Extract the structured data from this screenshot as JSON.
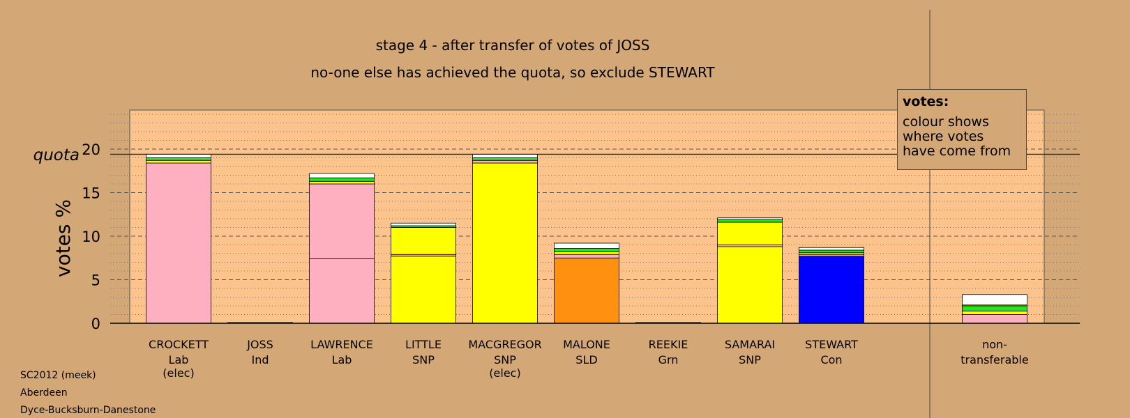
{
  "chart_data": {
    "type": "bar",
    "stacked": true,
    "title": "stage 4 - after transfer of votes of JOSS",
    "subtitle": "no-one else has achieved the quota, so exclude STEWART",
    "ylabel": "votes %",
    "quota_label": "quota",
    "quota": 19.4,
    "ylim": [
      0,
      24.4
    ],
    "yticks": [
      0,
      5,
      10,
      15,
      20
    ],
    "grid": "dotted minor lines, dashed major lines",
    "categories": [
      {
        "name": "CROCKETT",
        "party": "Lab",
        "status": "(elec)"
      },
      {
        "name": "JOSS",
        "party": "Ind",
        "status": ""
      },
      {
        "name": "LAWRENCE",
        "party": "Lab",
        "status": ""
      },
      {
        "name": "LITTLE",
        "party": "SNP",
        "status": ""
      },
      {
        "name": "MACGREGOR",
        "party": "SNP",
        "status": "(elec)"
      },
      {
        "name": "MALONE",
        "party": "SLD",
        "status": ""
      },
      {
        "name": "REEKIE",
        "party": "Grn",
        "status": ""
      },
      {
        "name": "SAMARAI",
        "party": "SNP",
        "status": ""
      },
      {
        "name": "STEWART",
        "party": "Con",
        "status": ""
      }
    ],
    "nontransferable_label": [
      "non-",
      "transferable"
    ],
    "bars": [
      [
        {
          "v": 18.4,
          "c": "#ffb0c0"
        },
        {
          "v": 0.3,
          "c": "#ffff00"
        },
        {
          "v": 0.3,
          "c": "#20e820"
        },
        {
          "v": 0.4,
          "c": "#ffffff"
        }
      ],
      [
        {
          "v": 0.1,
          "c": "#ffffff"
        }
      ],
      [
        {
          "v": 7.4,
          "c": "#ffb0c0"
        },
        {
          "v": 8.6,
          "c": "#ffb0c0"
        },
        {
          "v": 0.3,
          "c": "#ffff00"
        },
        {
          "v": 0.4,
          "c": "#20e820"
        },
        {
          "v": 0.5,
          "c": "#ffffff"
        }
      ],
      [
        {
          "v": 7.7,
          "c": "#ffff00"
        },
        {
          "v": 0.2,
          "c": "#ffb0c0"
        },
        {
          "v": 3.1,
          "c": "#ffff00"
        },
        {
          "v": 0.2,
          "c": "#20e820"
        },
        {
          "v": 0.3,
          "c": "#ffffff"
        }
      ],
      [
        {
          "v": 18.4,
          "c": "#ffff00"
        },
        {
          "v": 0.3,
          "c": "#ffb0c0"
        },
        {
          "v": 0.3,
          "c": "#20e820"
        },
        {
          "v": 0.4,
          "c": "#ffffff"
        }
      ],
      [
        {
          "v": 7.5,
          "c": "#ff9010"
        },
        {
          "v": 0.4,
          "c": "#ffb0c0"
        },
        {
          "v": 0.3,
          "c": "#ffff00"
        },
        {
          "v": 0.4,
          "c": "#20e820"
        },
        {
          "v": 0.6,
          "c": "#ffffff"
        }
      ],
      [
        {
          "v": 0.1,
          "c": "#ffffff"
        }
      ],
      [
        {
          "v": 8.8,
          "c": "#ffff00"
        },
        {
          "v": 0.2,
          "c": "#ffb0c0"
        },
        {
          "v": 2.6,
          "c": "#ffff00"
        },
        {
          "v": 0.3,
          "c": "#20e820"
        },
        {
          "v": 0.2,
          "c": "#ffffff"
        }
      ],
      [
        {
          "v": 7.7,
          "c": "#0000ff"
        },
        {
          "v": 0.2,
          "c": "#ffb0c0"
        },
        {
          "v": 0.2,
          "c": "#ffff00"
        },
        {
          "v": 0.3,
          "c": "#20e820"
        },
        {
          "v": 0.3,
          "c": "#ffffff"
        }
      ]
    ],
    "nontransferable_bar": [
      {
        "v": 1.0,
        "c": "#ffb0c0"
      },
      {
        "v": 0.4,
        "c": "#ffff00"
      },
      {
        "v": 0.6,
        "c": "#20e820"
      },
      {
        "v": 0.1,
        "c": "#ffff00"
      },
      {
        "v": 1.2,
        "c": "#ffffff"
      }
    ]
  },
  "legend": {
    "title": "votes:",
    "body": "colour shows\nwhere votes\nhave come from"
  },
  "footer": {
    "line1": "SC2012 (meek)",
    "line2": "Aberdeen",
    "line3": "Dyce-Bucksburn-Danestone"
  },
  "colors": {
    "background": "#d4a876",
    "plot_area": "#fcc48c",
    "lab": "#ffb0c0",
    "snp": "#ffff00",
    "sld": "#ff9010",
    "con": "#0000ff",
    "grn": "#20e820"
  }
}
